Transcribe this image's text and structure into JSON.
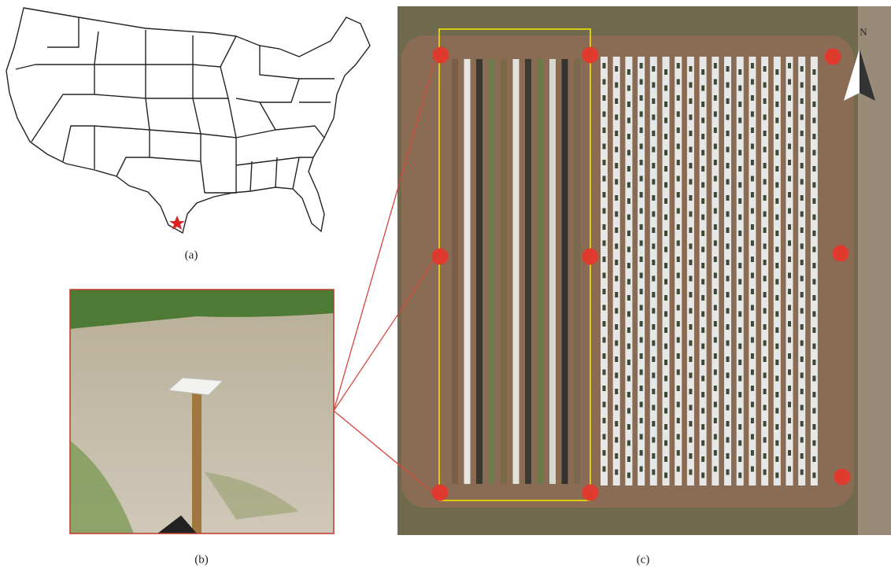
{
  "panels": [
    {
      "label": "(a)"
    },
    {
      "label": "(b)"
    },
    {
      "label": "(c)"
    }
  ],
  "north": "N"
}
